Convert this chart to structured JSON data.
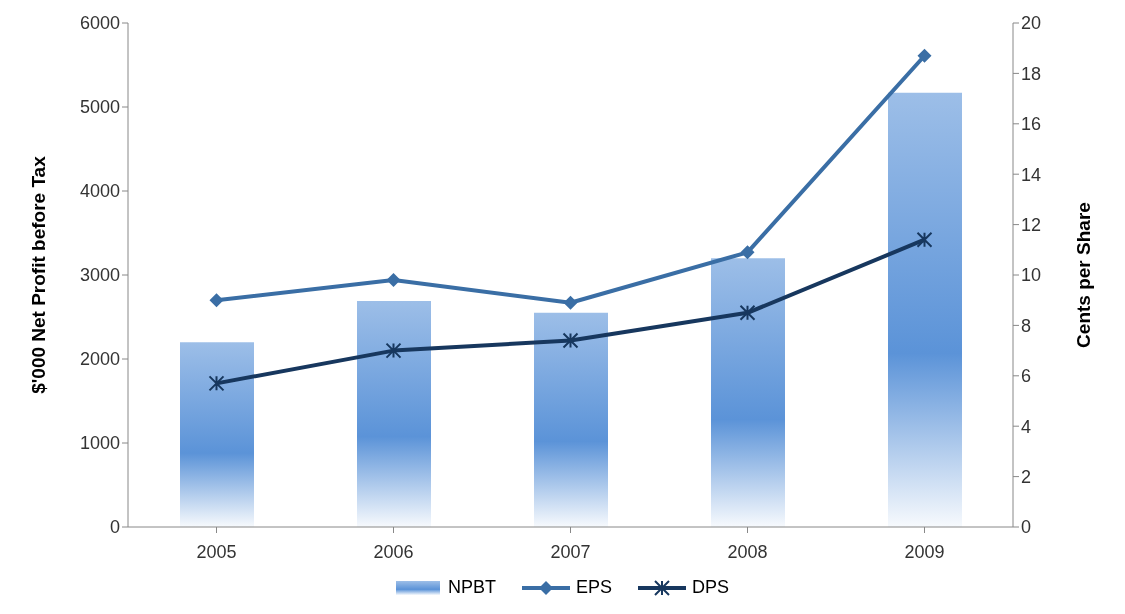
{
  "chart_data": {
    "type": "bar",
    "categories": [
      "2005",
      "2006",
      "2007",
      "2008",
      "2009"
    ],
    "ylabel": "$'000 Net Profit before Tax",
    "y2label": "Cents per Share",
    "ylim": [
      0,
      6000
    ],
    "yticks": [
      0,
      1000,
      2000,
      3000,
      4000,
      5000,
      6000
    ],
    "y2lim": [
      0,
      20
    ],
    "y2ticks": [
      0,
      2,
      4,
      6,
      8,
      10,
      12,
      14,
      16,
      18,
      20
    ],
    "grid": false,
    "legend": "bottom",
    "series": [
      {
        "name": "NPBT",
        "color": "#5b93d8",
        "values": [
          2200,
          2690,
          2550,
          3200,
          5170
        ]
      },
      {
        "name": "EPS",
        "type": "line",
        "axis": "y2",
        "marker": "diamond",
        "color": "#3a6ea5",
        "values": [
          9.0,
          9.8,
          8.9,
          10.9,
          18.7
        ]
      },
      {
        "name": "DPS",
        "type": "line",
        "axis": "y2",
        "marker": "cross",
        "color": "#17375e",
        "values": [
          5.7,
          7.0,
          7.4,
          8.5,
          11.4
        ]
      }
    ]
  }
}
